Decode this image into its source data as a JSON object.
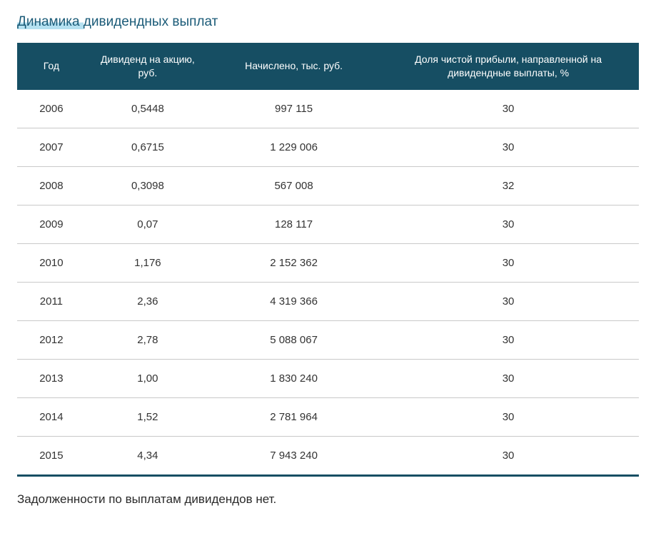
{
  "title_part1": "Динамика ",
  "title_part2": "дивидендных выплат",
  "table": {
    "columns": [
      "Год",
      "Дивиденд на акцию, руб.",
      "Начислено, тыс. руб.",
      "Доля чистой прибыли, направленной на дивидендные выплаты, %"
    ],
    "rows": [
      [
        "2006",
        "0,5448",
        "997 115",
        "30"
      ],
      [
        "2007",
        "0,6715",
        "1 229 006",
        "30"
      ],
      [
        "2008",
        "0,3098",
        "567 008",
        "32"
      ],
      [
        "2009",
        "0,07",
        "128 117",
        "30"
      ],
      [
        "2010",
        "1,176",
        "2 152 362",
        "30"
      ],
      [
        "2011",
        "2,36",
        "4 319 366",
        "30"
      ],
      [
        "2012",
        "2,78",
        "5 088 067",
        "30"
      ],
      [
        "2013",
        "1,00",
        "1 830 240",
        "30"
      ],
      [
        "2014",
        "1,52",
        "2 781 964",
        "30"
      ],
      [
        "2015",
        "4,34",
        "7 943 240",
        "30"
      ]
    ],
    "header_bg": "#164e63",
    "header_fg": "#ffffff",
    "row_border_color": "#c9c9c9",
    "bottom_border_color": "#164e63"
  },
  "footnote": "Задолженности по выплатам дивидендов нет."
}
